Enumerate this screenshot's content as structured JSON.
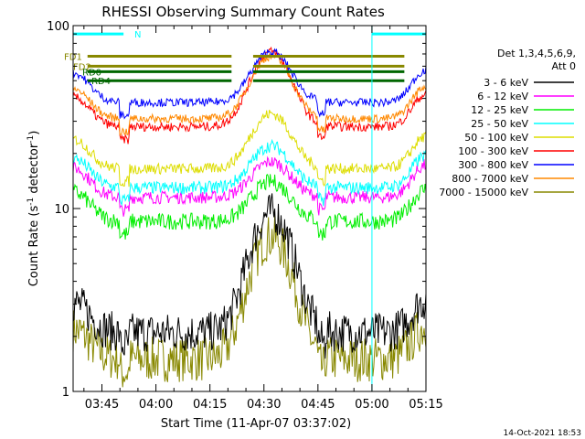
{
  "chart_data": {
    "type": "line",
    "title": "RHESSI Observing Summary Count Rates",
    "xlabel": "Start Time (11-Apr-07 03:37:02)",
    "ylabel_main": "Count Rate (s",
    "ylabel_sup": "-1",
    "ylabel_tail": " detector",
    "ylabel_end": ")",
    "yscale": "log",
    "ylim": [
      1,
      100
    ],
    "xlim_minutes": [
      0,
      98
    ],
    "yticks": [
      {
        "v": 1,
        "label": "1"
      },
      {
        "v": 10,
        "label": "10"
      },
      {
        "v": 100,
        "label": "100"
      }
    ],
    "xticks": [
      {
        "t": 8,
        "label": "03:45"
      },
      {
        "t": 23,
        "label": "04:00"
      },
      {
        "t": 38,
        "label": "04:15"
      },
      {
        "t": 53,
        "label": "04:30"
      },
      {
        "t": 68,
        "label": "04:45"
      },
      {
        "t": 83,
        "label": "05:00"
      },
      {
        "t": 98,
        "label": "05:15"
      }
    ],
    "legend_header": [
      "Det 1,3,4,5,6,9,",
      "Att 0"
    ],
    "legend_position": "right",
    "series": [
      {
        "name": "3 - 6 keV",
        "color": "#000000",
        "base": 2.1,
        "peak": 9.5,
        "noise": 0.22
      },
      {
        "name": "6 - 12 keV",
        "color": "#ff00ff",
        "base": 11.5,
        "peak": 18,
        "noise": 0.07
      },
      {
        "name": "12 - 25 keV",
        "color": "#00ee00",
        "base": 8.5,
        "peak": 14,
        "noise": 0.09
      },
      {
        "name": "25 - 50 keV",
        "color": "#00ffff",
        "base": 13,
        "peak": 22,
        "noise": 0.07
      },
      {
        "name": "50 - 100 keV",
        "color": "#dddd00",
        "base": 16.5,
        "peak": 33,
        "noise": 0.06
      },
      {
        "name": "100 - 300 keV",
        "color": "#ff0000",
        "base": 28,
        "peak": 72,
        "noise": 0.05
      },
      {
        "name": "300 - 800 keV",
        "color": "#0000ff",
        "base": 38,
        "peak": 72,
        "noise": 0.045
      },
      {
        "name": "800 - 7000 keV",
        "color": "#ff8800",
        "base": 31,
        "peak": 68,
        "noise": 0.045
      },
      {
        "name": "7000 - 15000 keV",
        "color": "#888800",
        "base": 1.5,
        "peak": 7,
        "noise": 0.25
      }
    ],
    "flags": [
      {
        "name": "FD1",
        "color": "#888800",
        "y": 68
      },
      {
        "name": "FD2",
        "color": "#888800",
        "y": 60
      },
      {
        "name": "RD0",
        "color": "#006600",
        "y": 56
      },
      {
        "name": "RD4",
        "color": "#006600",
        "y": 50
      },
      {
        "name": "N",
        "color": "#00ffff",
        "y": 90
      }
    ],
    "footer_date": "14-Oct-2021 18:53"
  }
}
